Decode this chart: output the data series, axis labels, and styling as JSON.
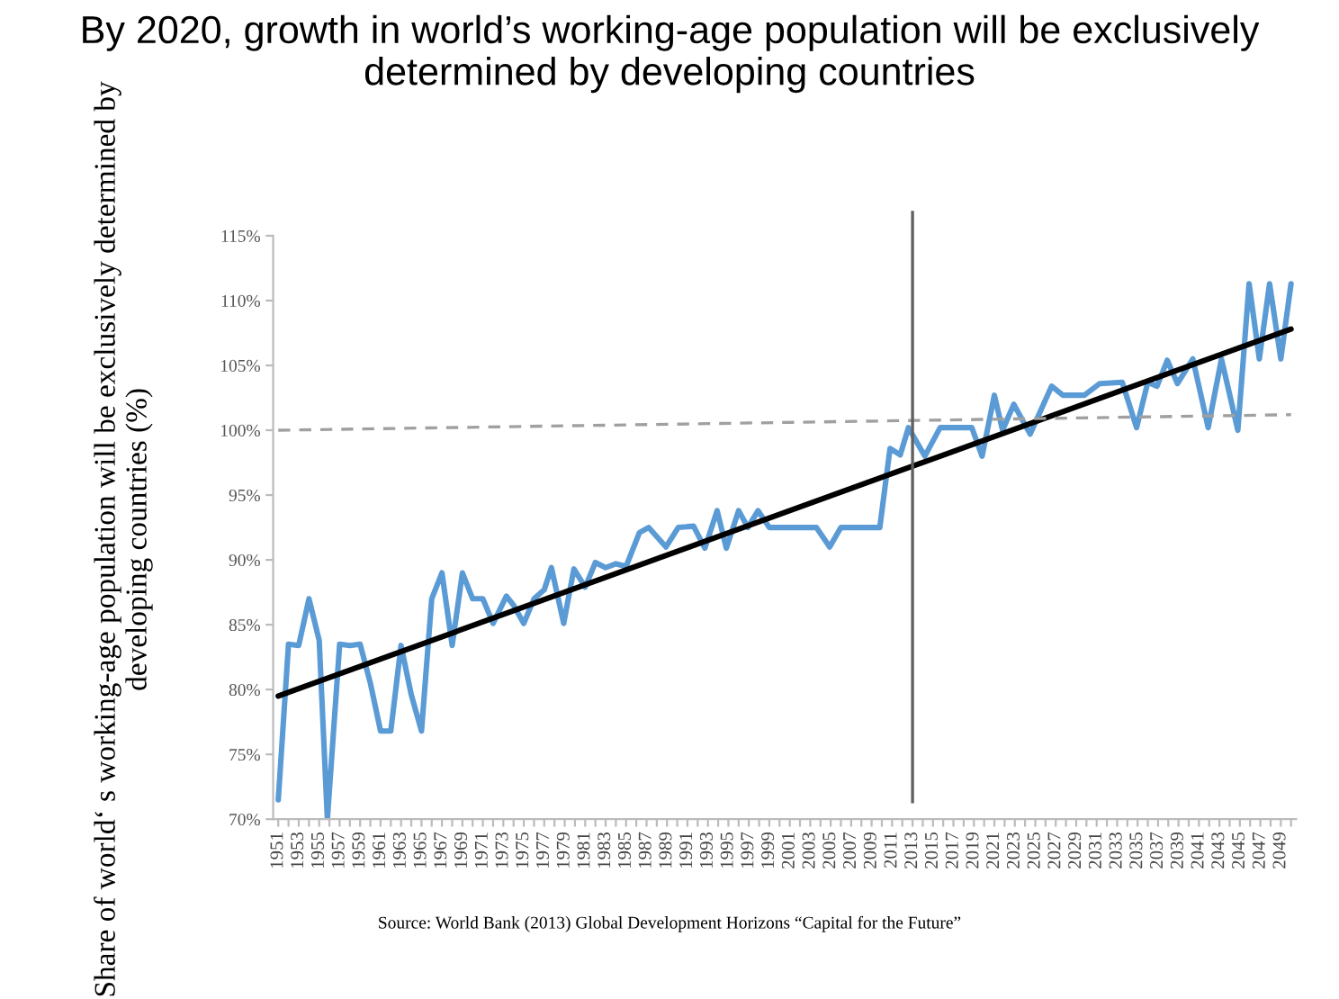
{
  "chart_data": {
    "type": "line",
    "title": "By 2020, growth in world’s working-age population will be exclusively determined by developing countries",
    "ylabel": "Share of world‘ s working-age population will be exclusively determined by developing countries (%)",
    "annotations": [
      "Source: World Bank (2013) Global Development Horizons “Capital for the Future”"
    ],
    "xlim": [
      1950.5,
      2050.5
    ],
    "xticks": [
      1951,
      {
        "value": 1952,
        "label": null
      },
      1953,
      {
        "value": 1954,
        "label": null
      },
      1955,
      {
        "value": 1956,
        "label": null
      },
      1957,
      {
        "value": 1958,
        "label": null
      },
      1959,
      {
        "value": 1960,
        "label": null
      },
      1961,
      {
        "value": 1962,
        "label": null
      },
      1963,
      {
        "value": 1964,
        "label": null
      },
      1965,
      {
        "value": 1966,
        "label": null
      },
      1967,
      {
        "value": 1968,
        "label": null
      },
      1969,
      {
        "value": 1970,
        "label": null
      },
      1971,
      {
        "value": 1972,
        "label": null
      },
      1973,
      {
        "value": 1974,
        "label": null
      },
      1975,
      {
        "value": 1976,
        "label": null
      },
      1977,
      {
        "value": 1978,
        "label": null
      },
      1979,
      {
        "value": 1980,
        "label": null
      },
      1981,
      {
        "value": 1982,
        "label": null
      },
      1983,
      {
        "value": 1984,
        "label": null
      },
      1985,
      {
        "value": 1986,
        "label": null
      },
      1987,
      {
        "value": 1988,
        "label": null
      },
      1989,
      {
        "value": 1990,
        "label": null
      },
      1991,
      {
        "value": 1992,
        "label": null
      },
      1993,
      {
        "value": 1994,
        "label": null
      },
      1995,
      {
        "value": 1996,
        "label": null
      },
      1997,
      {
        "value": 1998,
        "label": null
      },
      1999,
      {
        "value": 2000,
        "label": null
      },
      2001,
      {
        "value": 2002,
        "label": null
      },
      2003,
      {
        "value": 2004,
        "label": null
      },
      2005,
      {
        "value": 2006,
        "label": null
      },
      2007,
      {
        "value": 2008,
        "label": null
      },
      2009,
      {
        "value": 2010,
        "label": null
      },
      2011,
      {
        "value": 2012,
        "label": null
      },
      2013,
      {
        "value": 2014,
        "label": null
      },
      2015,
      {
        "value": 2016,
        "label": null
      },
      2017,
      {
        "value": 2018,
        "label": null
      },
      2019,
      {
        "value": 2020,
        "label": null
      },
      2021,
      {
        "value": 2022,
        "label": null
      },
      2023,
      {
        "value": 2024,
        "label": null
      },
      2025,
      {
        "value": 2026,
        "label": null
      },
      2027,
      {
        "value": 2028,
        "label": null
      },
      2029,
      {
        "value": 2030,
        "label": null
      },
      2031,
      {
        "value": 2032,
        "label": null
      },
      2033,
      {
        "value": 2034,
        "label": null
      },
      2035,
      {
        "value": 2036,
        "label": null
      },
      2037,
      {
        "value": 2038,
        "label": null
      },
      2039,
      {
        "value": 2040,
        "label": null
      },
      2041,
      {
        "value": 2042,
        "label": null
      },
      2043,
      {
        "value": 2044,
        "label": null
      },
      2045,
      {
        "value": 2046,
        "label": null
      },
      2047,
      {
        "value": 2048,
        "label": null
      },
      2049,
      {
        "value": 2050,
        "label": null
      }
    ],
    "ylim": [
      70,
      115
    ],
    "yticks": [
      {
        "value": 70,
        "label": "70%"
      },
      {
        "value": 75,
        "label": "75%"
      },
      {
        "value": 80,
        "label": "80%"
      },
      {
        "value": 85,
        "label": "85%"
      },
      {
        "value": 90,
        "label": "90%"
      },
      {
        "value": 95,
        "label": "95%"
      },
      {
        "value": 100,
        "label": "100%"
      },
      {
        "value": 105,
        "label": "105%"
      },
      {
        "value": 110,
        "label": "110%"
      },
      {
        "value": 115,
        "label": "115%"
      }
    ],
    "grid": false,
    "legend": false,
    "marker": "none",
    "ref_lines": [
      {
        "axis": "x",
        "value": 2013,
        "color": "#606060"
      }
    ],
    "series": [
      {
        "color": "#5b9bd5",
        "line_style": "solid",
        "x": [
          1951,
          1952,
          1953,
          1954,
          1955,
          1955.8,
          1957,
          1958,
          1959,
          1960,
          1961,
          1962,
          1963,
          1964,
          1965,
          1966,
          1967,
          1968,
          1969,
          1970,
          1971,
          1972,
          1973.3,
          1974,
          1975,
          1976,
          1977,
          1977.7,
          1978.9,
          1979.9,
          1981,
          1982,
          1983,
          1984,
          1985,
          1986.3,
          1987.2,
          1988.9,
          1990.1,
          1991.6,
          1992.7,
          1993.9,
          1994.8,
          1996,
          1996.9,
          1997.9,
          1999,
          2003.6,
          2004.9,
          2006,
          2009.8,
          2010.8,
          2011.8,
          2012.6,
          2014.2,
          2015.7,
          2018.8,
          2019.8,
          2021,
          2021.8,
          2022.9,
          2024.5,
          2026.6,
          2027.7,
          2029.8,
          2031.3,
          2033.5,
          2034.9,
          2036,
          2036.9,
          2037.9,
          2038.9,
          2040.4,
          2041.9,
          2043.2,
          2044.8,
          2045.9,
          2046.9,
          2047.9,
          2049,
          2050
        ],
        "values": [
          71.5,
          83.5,
          83.4,
          87.0,
          83.8,
          70,
          83.5,
          83.4,
          83.5,
          80.5,
          76.8,
          76.8,
          83.4,
          79.6,
          76.8,
          87,
          89,
          83.4,
          89,
          87,
          87,
          85.1,
          87.2,
          86.5,
          85.1,
          87,
          87.7,
          89.4,
          85.1,
          89.3,
          87.9,
          89.8,
          89.4,
          89.7,
          89.5,
          92.1,
          92.5,
          91,
          92.5,
          92.6,
          90.9,
          93.8,
          90.9,
          93.8,
          92.5,
          93.8,
          92.5,
          92.5,
          91,
          92.5,
          92.5,
          98.6,
          98.1,
          100.2,
          98,
          100.2,
          100.2,
          98,
          102.7,
          100,
          102,
          99.7,
          103.4,
          102.7,
          102.7,
          103.6,
          103.7,
          100.2,
          103.7,
          103.4,
          105.4,
          103.6,
          105.5,
          100.2,
          105.5,
          100,
          111.3,
          105.5,
          111.3,
          105.5,
          111.3
        ]
      },
      {
        "color": "#000000",
        "line_style": "solid",
        "x": [
          1951,
          2050
        ],
        "values": [
          79.5,
          107.8
        ]
      },
      {
        "color": "#a0a0a0",
        "line_style": "dashed",
        "x": [
          1951,
          2050
        ],
        "values": [
          100,
          101.2
        ]
      }
    ]
  }
}
